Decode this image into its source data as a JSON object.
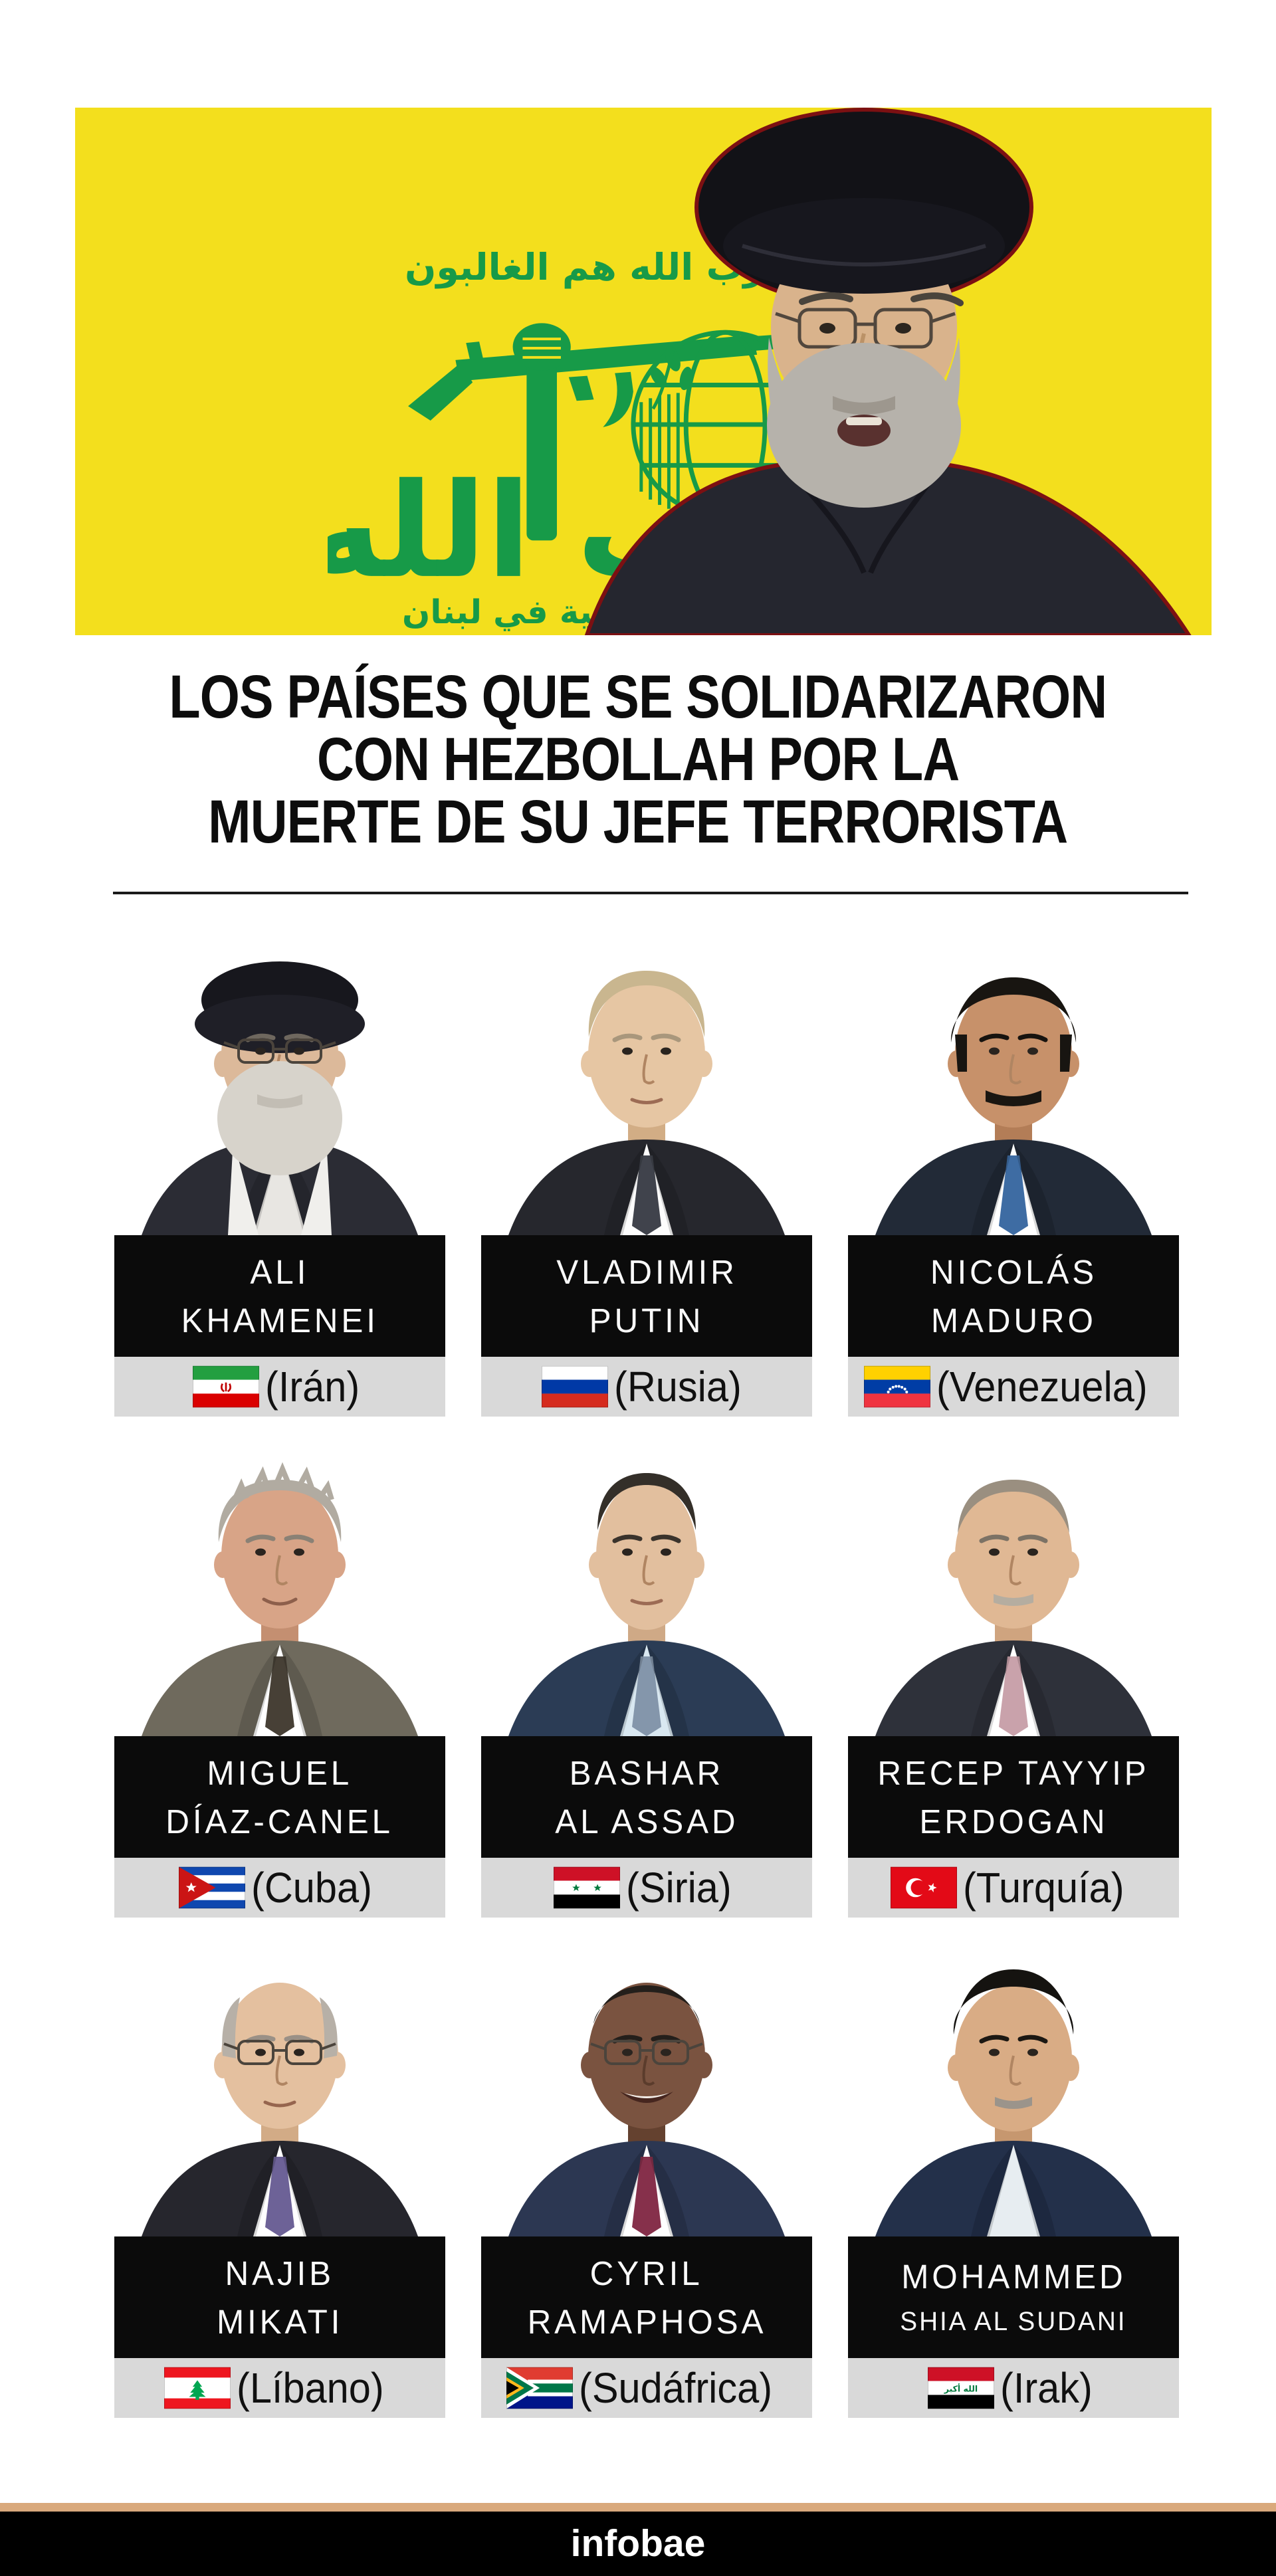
{
  "banner": {
    "logo": {
      "name": "hezbollah-logo",
      "top_arabic": "فإن حزب الله هم الغالبون",
      "script_arabic": "حزب الله",
      "bottom_arabic": "الإسلامية في لبنان"
    }
  },
  "title": {
    "line1": "LOS PAÍSES QUE SE SOLIDARIZARON",
    "line2": "CON HEZBOLLAH POR LA",
    "line3": "MUERTE DE SU JEFE TERRORISTA"
  },
  "leaders": [
    {
      "name_line1": "ALI",
      "name_line2": "KHAMENEI",
      "country": "(Irán)",
      "flag_icon": "iran-flag"
    },
    {
      "name_line1": "VLADIMIR",
      "name_line2": "PUTIN",
      "country": "(Rusia)",
      "flag_icon": "russia-flag"
    },
    {
      "name_line1": "NICOLÁS",
      "name_line2": "MADURO",
      "country": "(Venezuela)",
      "flag_icon": "venezuela-flag"
    },
    {
      "name_line1": "MIGUEL",
      "name_line2": "DÍAZ-CANEL",
      "country": "(Cuba)",
      "flag_icon": "cuba-flag"
    },
    {
      "name_line1": "BASHAR",
      "name_line2": "AL ASSAD",
      "country": "(Siria)",
      "flag_icon": "syria-flag"
    },
    {
      "name_line1": "RECEP TAYYIP",
      "name_line2": "ERDOGAN",
      "country": "(Turquía)",
      "flag_icon": "turkey-flag"
    },
    {
      "name_line1": "NAJIB",
      "name_line2": "MIKATI",
      "country": "(Líbano)",
      "flag_icon": "lebanon-flag"
    },
    {
      "name_line1": "CYRIL",
      "name_line2": "RAMAPHOSA",
      "country": "(Sudáfrica)",
      "flag_icon": "south-africa-flag"
    },
    {
      "name_line1": "MOHAMMED",
      "name_line2": "SHIA AL SUDANI",
      "country": "(Irak)",
      "flag_icon": "iraq-flag"
    }
  ],
  "footer": {
    "brand": "infobae"
  },
  "colors": {
    "banner_yellow": "#F3DF1D",
    "logo_green": "#179A48",
    "footer_tan": "#D9A97C",
    "plate_black": "#0B0B0B",
    "strip_gray": "#D9D9D9",
    "rule_dark": "#1A1A1A",
    "photo_outline_red": "#7C1012"
  }
}
